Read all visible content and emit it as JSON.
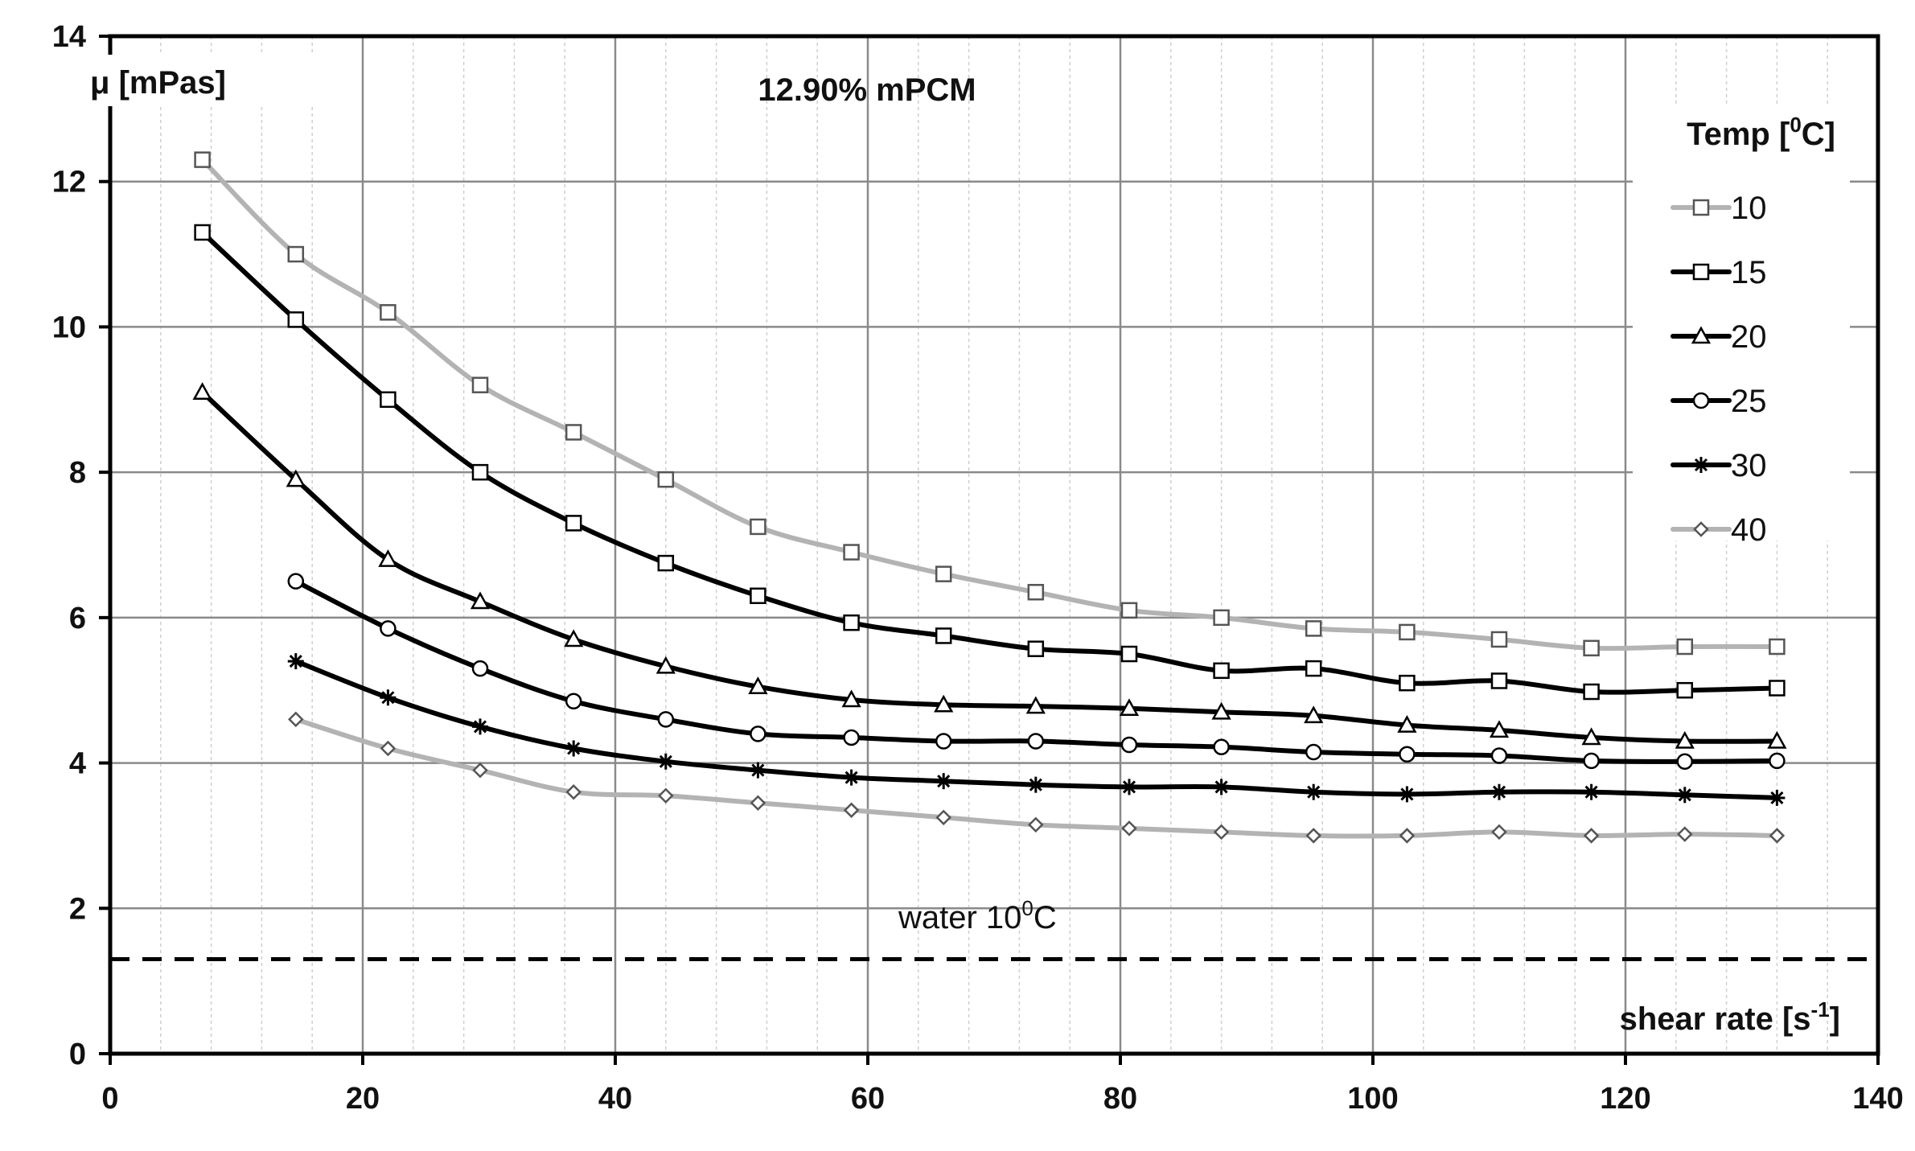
{
  "chart_data": {
    "type": "line",
    "title": "12.90% mPCM",
    "ylabel": "μ [mPas]",
    "xlabel_main": "shear rate [s",
    "xlabel_sup": "-1",
    "xlabel_end": "]",
    "xlim": [
      0,
      140
    ],
    "ylim": [
      0,
      14
    ],
    "xticks": [
      0,
      20,
      40,
      60,
      80,
      100,
      120,
      140
    ],
    "yticks": [
      0,
      2,
      4,
      6,
      8,
      10,
      12,
      14
    ],
    "x_minor_step": 4,
    "grid": true,
    "legend": {
      "title_main": "Temp [",
      "title_sup": "0",
      "title_end": "C]",
      "position": "right"
    },
    "reference_line": {
      "label_main": "water 10",
      "label_sup": "0",
      "label_end": "C",
      "y": 1.3,
      "style": "dashed",
      "color": "#000000"
    },
    "series": [
      {
        "name": "10",
        "color": "#b3b3b3",
        "marker": "square",
        "x": [
          7.3,
          14.7,
          22.0,
          29.3,
          36.7,
          44.0,
          51.3,
          58.7,
          66.0,
          73.3,
          80.7,
          88.0,
          95.3,
          102.7,
          110.0,
          117.3,
          124.7,
          132.0
        ],
        "y": [
          12.3,
          11.0,
          10.2,
          9.2,
          8.55,
          7.9,
          7.25,
          6.9,
          6.6,
          6.35,
          6.1,
          6.0,
          5.85,
          5.8,
          5.7,
          5.58,
          5.6,
          5.6
        ]
      },
      {
        "name": "15",
        "color": "#000000",
        "marker": "square",
        "x": [
          7.3,
          14.7,
          22.0,
          29.3,
          36.7,
          44.0,
          51.3,
          58.7,
          66.0,
          73.3,
          80.7,
          88.0,
          95.3,
          102.7,
          110.0,
          117.3,
          124.7,
          132.0
        ],
        "y": [
          11.3,
          10.1,
          9.0,
          8.0,
          7.3,
          6.75,
          6.3,
          5.93,
          5.75,
          5.57,
          5.5,
          5.27,
          5.3,
          5.1,
          5.13,
          4.98,
          5.0,
          5.03
        ]
      },
      {
        "name": "20",
        "color": "#000000",
        "marker": "triangle",
        "x": [
          7.3,
          14.7,
          22.0,
          29.3,
          36.7,
          44.0,
          51.3,
          58.7,
          66.0,
          73.3,
          80.7,
          88.0,
          95.3,
          102.7,
          110.0,
          117.3,
          124.7,
          132.0
        ],
        "y": [
          9.1,
          7.9,
          6.8,
          6.22,
          5.7,
          5.33,
          5.05,
          4.87,
          4.8,
          4.78,
          4.75,
          4.7,
          4.65,
          4.52,
          4.45,
          4.35,
          4.3,
          4.3
        ]
      },
      {
        "name": "25",
        "color": "#000000",
        "marker": "circle",
        "x": [
          14.7,
          22.0,
          29.3,
          36.7,
          44.0,
          51.3,
          58.7,
          66.0,
          73.3,
          80.7,
          88.0,
          95.3,
          102.7,
          110.0,
          117.3,
          124.7,
          132.0
        ],
        "y": [
          6.5,
          5.85,
          5.3,
          4.85,
          4.6,
          4.4,
          4.35,
          4.3,
          4.3,
          4.25,
          4.22,
          4.15,
          4.12,
          4.1,
          4.03,
          4.02,
          4.03
        ]
      },
      {
        "name": "30",
        "color": "#000000",
        "marker": "asterisk",
        "x": [
          14.7,
          22.0,
          29.3,
          36.7,
          44.0,
          51.3,
          58.7,
          66.0,
          73.3,
          80.7,
          88.0,
          95.3,
          102.7,
          110.0,
          117.3,
          124.7,
          132.0
        ],
        "y": [
          5.4,
          4.9,
          4.5,
          4.2,
          4.02,
          3.9,
          3.8,
          3.75,
          3.7,
          3.67,
          3.67,
          3.6,
          3.57,
          3.6,
          3.6,
          3.56,
          3.52
        ]
      },
      {
        "name": "40",
        "color": "#b3b3b3",
        "marker": "diamond",
        "x": [
          14.7,
          22.0,
          29.3,
          36.7,
          44.0,
          51.3,
          58.7,
          66.0,
          73.3,
          80.7,
          88.0,
          95.3,
          102.7,
          110.0,
          117.3,
          124.7,
          132.0
        ],
        "y": [
          4.6,
          4.2,
          3.9,
          3.6,
          3.55,
          3.45,
          3.35,
          3.25,
          3.15,
          3.1,
          3.05,
          3.0,
          3.0,
          3.05,
          3.0,
          3.02,
          3.0
        ]
      }
    ]
  }
}
